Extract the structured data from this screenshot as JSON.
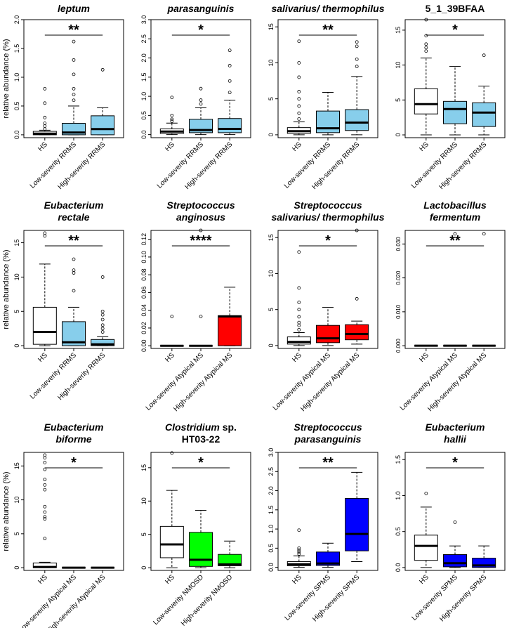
{
  "figure": {
    "ylabel": "relative abundance (%)",
    "colors": {
      "hs": "#ffffff",
      "rrms": "#87ceeb",
      "atypical": "#ff0000",
      "nmosd": "#00ff00",
      "spms": "#0000ff",
      "outline": "#000000",
      "median": "#000000"
    }
  },
  "chart_data": [
    {
      "type": "box",
      "title_lines": [
        [
          {
            "t": "leptum",
            "it": true
          }
        ]
      ],
      "ylabel": "relative abundance (%)",
      "ylim": [
        -0.05,
        2.0
      ],
      "yticks": [
        0.0,
        0.5,
        1.0,
        1.5,
        2.0
      ],
      "ytick_labels": [
        "0.0",
        "0.5",
        "1.0",
        "1.5",
        "2.0"
      ],
      "categories": [
        "HS",
        "Low-severity RRMS",
        "High-severity RRMS"
      ],
      "colors": [
        "#ffffff",
        "#87ceeb",
        "#87ceeb"
      ],
      "boxes": [
        {
          "low": 0.0,
          "q1": 0.0,
          "median": 0.02,
          "q3": 0.06,
          "high": 0.08,
          "outliers": [
            0.1,
            0.15,
            0.2,
            0.3,
            0.55,
            0.8
          ]
        },
        {
          "low": 0.0,
          "q1": 0.0,
          "median": 0.04,
          "q3": 0.2,
          "high": 0.5,
          "outliers": [
            0.6,
            0.7,
            0.8,
            1.05,
            1.3,
            1.62
          ]
        },
        {
          "low": 0.0,
          "q1": 0.0,
          "median": 0.1,
          "q3": 0.33,
          "high": 0.47,
          "outliers": [
            1.13
          ]
        }
      ],
      "significance": "**"
    },
    {
      "type": "box",
      "title_lines": [
        [
          {
            "t": "parasanguinis",
            "it": true
          }
        ]
      ],
      "ylim": [
        -0.08,
        3.0
      ],
      "yticks": [
        0.0,
        0.5,
        1.0,
        1.5,
        2.0,
        2.5,
        3.0
      ],
      "ytick_labels": [
        "0.0",
        "0.5",
        "1.0",
        "1.5",
        "2.0",
        "2.5",
        "3.0"
      ],
      "categories": [
        "HS",
        "Low-severity RRMS",
        "High-severity RRMS"
      ],
      "colors": [
        "#ffffff",
        "#87ceeb",
        "#87ceeb"
      ],
      "boxes": [
        {
          "low": 0.0,
          "q1": 0.03,
          "median": 0.08,
          "q3": 0.15,
          "high": 0.3,
          "outliers": [
            0.35,
            0.4,
            0.5,
            0.97
          ]
        },
        {
          "low": 0.0,
          "q1": 0.05,
          "median": 0.12,
          "q3": 0.4,
          "high": 0.7,
          "outliers": [
            0.8,
            0.9,
            1.2
          ]
        },
        {
          "low": 0.0,
          "q1": 0.05,
          "median": 0.15,
          "q3": 0.42,
          "high": 0.9,
          "outliers": [
            1.1,
            1.4,
            1.8,
            2.2
          ]
        }
      ],
      "significance": "*"
    },
    {
      "type": "box",
      "title_lines": [
        [
          {
            "t": "salivarius/ thermophilus",
            "it": true
          }
        ]
      ],
      "ylim": [
        -0.4,
        16.0
      ],
      "yticks": [
        0,
        5,
        10,
        15
      ],
      "ytick_labels": [
        "0",
        "5",
        "10",
        "15"
      ],
      "categories": [
        "HS",
        "Low-severity RRMS",
        "High-severity RRMS"
      ],
      "colors": [
        "#ffffff",
        "#87ceeb",
        "#87ceeb"
      ],
      "boxes": [
        {
          "low": 0.0,
          "q1": 0.2,
          "median": 0.5,
          "q3": 1.0,
          "high": 1.8,
          "outliers": [
            2.2,
            3.0,
            4.0,
            5.0,
            6.0,
            8.0,
            10.0,
            13.0
          ]
        },
        {
          "low": 0.0,
          "q1": 0.3,
          "median": 0.9,
          "q3": 3.3,
          "high": 5.9,
          "outliers": []
        },
        {
          "low": 0.0,
          "q1": 0.6,
          "median": 1.7,
          "q3": 3.5,
          "high": 8.1,
          "outliers": [
            9.5,
            10.5,
            12.3,
            12.9
          ]
        }
      ],
      "significance": "**"
    },
    {
      "type": "box",
      "title_lines": [
        [
          {
            "t": "5_1_39BFAA",
            "it": false
          }
        ]
      ],
      "ylim": [
        -0.4,
        16.5
      ],
      "yticks": [
        0,
        5,
        10,
        15
      ],
      "ytick_labels": [
        "0",
        "5",
        "10",
        "15"
      ],
      "categories": [
        "HS",
        "Low-severity RRMS",
        "High-severity RRMS"
      ],
      "colors": [
        "#ffffff",
        "#87ceeb",
        "#87ceeb"
      ],
      "boxes": [
        {
          "low": 0.0,
          "q1": 3.0,
          "median": 4.4,
          "q3": 6.6,
          "high": 11.0,
          "outliers": [
            12.0,
            12.5,
            13.0,
            14.2,
            16.5
          ]
        },
        {
          "low": 0.0,
          "q1": 1.6,
          "median": 3.7,
          "q3": 4.8,
          "high": 9.8,
          "outliers": []
        },
        {
          "low": 0.0,
          "q1": 1.2,
          "median": 3.2,
          "q3": 4.6,
          "high": 7.0,
          "outliers": [
            11.4
          ]
        }
      ],
      "significance": "*"
    },
    {
      "type": "box",
      "title_lines": [
        [
          {
            "t": "Eubacterium",
            "it": true
          }
        ],
        [
          {
            "t": "rectale",
            "it": true
          }
        ]
      ],
      "ylabel": "relative abundance (%)",
      "ylim": [
        -0.4,
        16.8
      ],
      "yticks": [
        0,
        5,
        10,
        15
      ],
      "ytick_labels": [
        "0",
        "5",
        "10",
        "15"
      ],
      "categories": [
        "HS",
        "Low-severity RRMS",
        "High-severity RRMS"
      ],
      "colors": [
        "#ffffff",
        "#87ceeb",
        "#87ceeb"
      ],
      "boxes": [
        {
          "low": 0.0,
          "q1": 0.2,
          "median": 2.0,
          "q3": 5.6,
          "high": 11.9,
          "outliers": [
            16.0,
            16.4
          ]
        },
        {
          "low": 0.0,
          "q1": 0.0,
          "median": 0.5,
          "q3": 3.5,
          "high": 5.6,
          "outliers": [
            8.0,
            10.6,
            11.0,
            12.6
          ]
        },
        {
          "low": 0.0,
          "q1": 0.0,
          "median": 0.2,
          "q3": 0.9,
          "high": 1.3,
          "outliers": [
            2.0,
            2.5,
            3.0,
            3.8,
            4.5,
            5.0,
            10.0
          ]
        }
      ],
      "significance": "**"
    },
    {
      "type": "box",
      "title_lines": [
        [
          {
            "t": "Streptococcus",
            "it": true
          }
        ],
        [
          {
            "t": "anginosus",
            "it": true
          }
        ]
      ],
      "ylim": [
        -0.003,
        0.13
      ],
      "yticks": [
        0.0,
        0.02,
        0.04,
        0.06,
        0.08,
        0.1,
        0.12
      ],
      "ytick_labels": [
        "0.00",
        "0.02",
        "0.04",
        "0.06",
        "0.08",
        "0.10",
        "0.12"
      ],
      "categories": [
        "HS",
        "Low-severity Atypical MS",
        "High-severity Atypical MS"
      ],
      "colors": [
        "#ffffff",
        "#ff0000",
        "#ff0000"
      ],
      "boxes": [
        {
          "low": 0.0,
          "q1": 0.0,
          "median": 0.0,
          "q3": 0.0,
          "high": 0.0,
          "outliers": [
            0.033
          ]
        },
        {
          "low": 0.0,
          "q1": 0.0,
          "median": 0.0,
          "q3": 0.0,
          "high": 0.0,
          "outliers": [
            0.033,
            0.13
          ]
        },
        {
          "low": 0.0,
          "q1": 0.0,
          "median": 0.033,
          "q3": 0.034,
          "high": 0.066,
          "outliers": []
        }
      ],
      "significance": "****"
    },
    {
      "type": "box",
      "title_lines": [
        [
          {
            "t": "Streptococcus",
            "it": true
          }
        ],
        [
          {
            "t": "salivarius/ thermophilus",
            "it": true
          }
        ]
      ],
      "ylim": [
        -0.4,
        16.0
      ],
      "yticks": [
        0,
        5,
        10,
        15
      ],
      "ytick_labels": [
        "0",
        "5",
        "10",
        "15"
      ],
      "categories": [
        "HS",
        "Low-severity Atypical MS",
        "High-severity Atypical MS"
      ],
      "colors": [
        "#ffffff",
        "#ff0000",
        "#ff0000"
      ],
      "boxes": [
        {
          "low": 0.0,
          "q1": 0.2,
          "median": 0.5,
          "q3": 1.2,
          "high": 1.8,
          "outliers": [
            2.2,
            2.8,
            3.2,
            4.0,
            5.0,
            6.0,
            8.0,
            13.0
          ]
        },
        {
          "low": 0.0,
          "q1": 0.4,
          "median": 1.0,
          "q3": 2.8,
          "high": 5.3,
          "outliers": []
        },
        {
          "low": 0.2,
          "q1": 0.8,
          "median": 1.6,
          "q3": 2.9,
          "high": 3.4,
          "outliers": [
            6.5,
            16.0
          ]
        }
      ],
      "significance": "*"
    },
    {
      "type": "box",
      "title_lines": [
        [
          {
            "t": "Lactobacillus",
            "it": true
          }
        ],
        [
          {
            "t": "fermentum",
            "it": true
          }
        ]
      ],
      "ylim": [
        -0.0008,
        0.034
      ],
      "yticks": [
        0.0,
        0.01,
        0.02,
        0.03
      ],
      "ytick_labels": [
        "0.000",
        "0.010",
        "0.020",
        "0.030"
      ],
      "categories": [
        "HS",
        "Low-severity Atypical MS",
        "High-severity Atypical MS"
      ],
      "colors": [
        "#ffffff",
        "#ff0000",
        "#ff0000"
      ],
      "boxes": [
        {
          "low": 0.0,
          "q1": 0.0,
          "median": 0.0,
          "q3": 0.0,
          "high": 0.0,
          "outliers": []
        },
        {
          "low": 0.0,
          "q1": 0.0,
          "median": 0.0,
          "q3": 0.0,
          "high": 0.0,
          "outliers": [
            0.033
          ]
        },
        {
          "low": 0.0,
          "q1": 0.0,
          "median": 0.0,
          "q3": 0.0,
          "high": 0.0,
          "outliers": [
            0.033
          ]
        }
      ],
      "significance": "**"
    },
    {
      "type": "box",
      "title_lines": [
        [
          {
            "t": "Eubacterium",
            "it": true
          }
        ],
        [
          {
            "t": "biforme",
            "it": true
          }
        ]
      ],
      "ylabel": "relative abundance (%)",
      "ylim": [
        -0.4,
        17.0
      ],
      "yticks": [
        0,
        5,
        10,
        15
      ],
      "ytick_labels": [
        "0",
        "5",
        "10",
        "15"
      ],
      "categories": [
        "HS",
        "Low-severity Atypical MS",
        "High-severity Atypical MS"
      ],
      "colors": [
        "#ffffff",
        "#00ff00",
        "#00ff00"
      ],
      "boxes": [
        {
          "low": 0.0,
          "q1": 0.0,
          "median": 0.1,
          "q3": 0.7,
          "high": 0.8,
          "outliers": [
            4.3,
            7.2,
            7.5,
            8.2,
            9.0,
            11.5,
            12.2,
            13.0,
            14.5,
            15.5,
            16.2,
            16.6
          ]
        },
        {
          "low": 0.0,
          "q1": 0.0,
          "median": 0.0,
          "q3": 0.0,
          "high": 0.0,
          "outliers": []
        },
        {
          "low": 0.0,
          "q1": 0.0,
          "median": 0.0,
          "q3": 0.0,
          "high": 0.0,
          "outliers": []
        }
      ],
      "significance": "*"
    },
    {
      "type": "box",
      "title_lines": [
        [
          {
            "t": "Clostridium",
            "it": true
          },
          {
            "t": " sp.",
            "it": false
          }
        ],
        [
          {
            "t": "HT03-22",
            "it": false
          }
        ]
      ],
      "ylim": [
        -0.4,
        17.3
      ],
      "yticks": [
        0,
        5,
        10,
        15
      ],
      "ytick_labels": [
        "0",
        "5",
        "10",
        "15"
      ],
      "categories": [
        "HS",
        "Low-severity NMOSD",
        "High-severity NMOSD"
      ],
      "colors": [
        "#ffffff",
        "#00ff00",
        "#00ff00"
      ],
      "boxes": [
        {
          "low": 0.0,
          "q1": 1.5,
          "median": 3.5,
          "q3": 6.2,
          "high": 11.6,
          "outliers": [
            17.2
          ]
        },
        {
          "low": 0.0,
          "q1": 0.2,
          "median": 1.2,
          "q3": 5.3,
          "high": 8.6,
          "outliers": []
        },
        {
          "low": 0.0,
          "q1": 0.3,
          "median": 0.5,
          "q3": 2.0,
          "high": 4.0,
          "outliers": []
        }
      ],
      "significance": "*"
    },
    {
      "type": "box",
      "title_lines": [
        [
          {
            "t": "Streptococcus",
            "it": true
          }
        ],
        [
          {
            "t": "parasanguinis",
            "it": true
          }
        ]
      ],
      "ylim": [
        -0.08,
        3.0
      ],
      "yticks": [
        0.0,
        0.5,
        1.0,
        1.5,
        2.0,
        2.5,
        3.0
      ],
      "ytick_labels": [
        "0.0",
        "0.5",
        "1.0",
        "1.5",
        "2.0",
        "2.5",
        "3.0"
      ],
      "categories": [
        "HS",
        "Low-severity SPMS",
        "High-severity SPMS"
      ],
      "colors": [
        "#ffffff",
        "#0000ff",
        "#0000ff"
      ],
      "boxes": [
        {
          "low": 0.0,
          "q1": 0.04,
          "median": 0.08,
          "q3": 0.15,
          "high": 0.3,
          "outliers": [
            0.35,
            0.4,
            0.45,
            0.5,
            0.97
          ]
        },
        {
          "low": 0.0,
          "q1": 0.05,
          "median": 0.1,
          "q3": 0.4,
          "high": 0.63,
          "outliers": []
        },
        {
          "low": 0.15,
          "q1": 0.43,
          "median": 0.87,
          "q3": 1.8,
          "high": 2.48,
          "outliers": []
        }
      ],
      "significance": "**"
    },
    {
      "type": "box",
      "title_lines": [
        [
          {
            "t": "Eubacterium",
            "it": true
          }
        ],
        [
          {
            "t": "hallii",
            "it": true
          }
        ]
      ],
      "ylim": [
        -0.04,
        1.6
      ],
      "yticks": [
        0.0,
        0.5,
        1.0,
        1.5
      ],
      "ytick_labels": [
        "0.0",
        "0.5",
        "1.0",
        "1.5"
      ],
      "categories": [
        "HS",
        "Low-severity SPMS",
        "High-severity SPMS"
      ],
      "colors": [
        "#ffffff",
        "#0000ff",
        "#0000ff"
      ],
      "boxes": [
        {
          "low": 0.0,
          "q1": 0.1,
          "median": 0.3,
          "q3": 0.45,
          "high": 0.84,
          "outliers": [
            1.03
          ]
        },
        {
          "low": 0.0,
          "q1": 0.01,
          "median": 0.06,
          "q3": 0.18,
          "high": 0.3,
          "outliers": [
            0.63
          ]
        },
        {
          "low": 0.0,
          "q1": 0.0,
          "median": 0.03,
          "q3": 0.13,
          "high": 0.3,
          "outliers": []
        }
      ],
      "significance": "*"
    }
  ]
}
